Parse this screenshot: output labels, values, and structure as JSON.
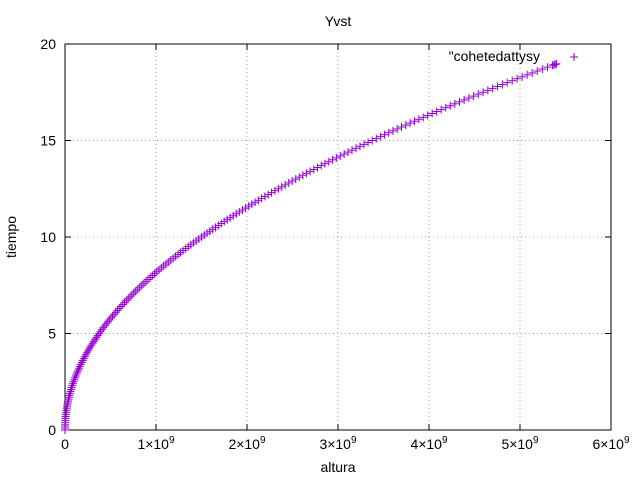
{
  "chart_data": {
    "type": "scatter",
    "title": "Yvst",
    "xlabel": "altura",
    "ylabel": "tiempo",
    "xlim": [
      0,
      6000000000
    ],
    "ylim": [
      0,
      20
    ],
    "x_ticks": [
      {
        "value": 0,
        "mantissa": "0",
        "exponent": ""
      },
      {
        "value": 1000000000,
        "mantissa": "1×10",
        "exponent": "9"
      },
      {
        "value": 2000000000,
        "mantissa": "2×10",
        "exponent": "9"
      },
      {
        "value": 3000000000,
        "mantissa": "3×10",
        "exponent": "9"
      },
      {
        "value": 4000000000,
        "mantissa": "4×10",
        "exponent": "9"
      },
      {
        "value": 5000000000,
        "mantissa": "5×10",
        "exponent": "9"
      },
      {
        "value": 6000000000,
        "mantissa": "6×10",
        "exponent": "9"
      }
    ],
    "y_ticks": [
      "0",
      "5",
      "10",
      "15",
      "20"
    ],
    "grid": true,
    "legend_position": "top-right",
    "series": [
      {
        "name": "\"cohetedattysy",
        "color": "#9400d3",
        "marker": "plus",
        "x": [
          0,
          1350000,
          5400000,
          12150000,
          21600000,
          33750000,
          48600000,
          66150000,
          86400000,
          109350000,
          135000000,
          163350000,
          194400000,
          228150000,
          264600000,
          303750000,
          345600000,
          390150000,
          437400000,
          487350000,
          540000000,
          595350000,
          653400000,
          714150000,
          777600000,
          843750000,
          912600000,
          984150000,
          1058400000,
          1135350000,
          1215000000,
          1297350000,
          1382400000,
          1470150000,
          1560600000,
          1653750000,
          1749600000,
          1848150000,
          1949400000,
          2053350000,
          2160000000,
          2269350000,
          2381400000,
          2496150000,
          2613600000,
          2733750000,
          2856600000,
          2982150000,
          3110400000,
          3241350000,
          3375000000,
          3511350000,
          3650400000,
          3792150000,
          3936600000,
          4083750000,
          4233600000,
          4386150000,
          4541400000,
          4699350000,
          4860000000,
          5023350000,
          5189400000,
          5358150000,
          5400000000
        ],
        "y": [
          0,
          0.3,
          0.6,
          0.9,
          1.2,
          1.5,
          1.8,
          2.1,
          2.4,
          2.7,
          3.0,
          3.3,
          3.6,
          3.9,
          4.2,
          4.5,
          4.8,
          5.1,
          5.4,
          5.7,
          6.0,
          6.3,
          6.6,
          6.9,
          7.2,
          7.5,
          7.8,
          8.1,
          8.4,
          8.7,
          9.0,
          9.3,
          9.6,
          9.9,
          10.2,
          10.5,
          10.8,
          11.1,
          11.4,
          11.7,
          12.0,
          12.3,
          12.6,
          12.9,
          13.2,
          13.5,
          13.8,
          14.1,
          14.4,
          14.7,
          15.0,
          15.3,
          15.6,
          15.9,
          16.2,
          16.5,
          16.8,
          17.1,
          17.4,
          17.7,
          18.0,
          18.3,
          18.6,
          18.9,
          18.97
        ]
      }
    ]
  }
}
